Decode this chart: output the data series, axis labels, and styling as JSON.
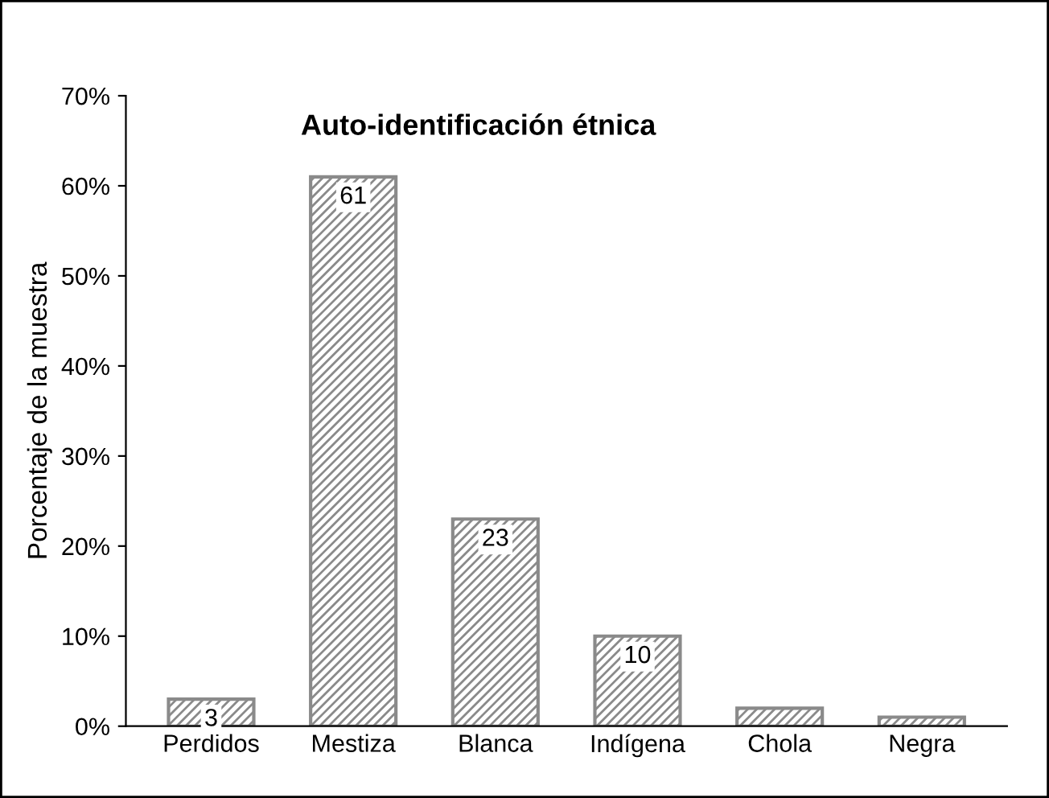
{
  "chart_data": {
    "type": "bar",
    "title": "Auto-identificación étnica",
    "ylabel": "Porcentaje de la muestra",
    "categories": [
      "Perdidos",
      "Mestiza",
      "Blanca",
      "Indígena",
      "Chola",
      "Negra"
    ],
    "values": [
      3,
      61,
      23,
      10,
      2,
      1
    ],
    "value_labels": [
      "3",
      "61",
      "23",
      "10",
      null,
      null
    ],
    "color": "#8a8a8a",
    "ylim": [
      0,
      70
    ],
    "yticks": [
      {
        "value": 0,
        "label": "0%"
      },
      {
        "value": 10,
        "label": "10%"
      },
      {
        "value": 20,
        "label": "20%"
      },
      {
        "value": 30,
        "label": "30%"
      },
      {
        "value": 40,
        "label": "40%"
      },
      {
        "value": 50,
        "label": "50%"
      },
      {
        "value": 60,
        "label": "60%"
      },
      {
        "value": 70,
        "label": "70%"
      }
    ],
    "grid": false
  }
}
